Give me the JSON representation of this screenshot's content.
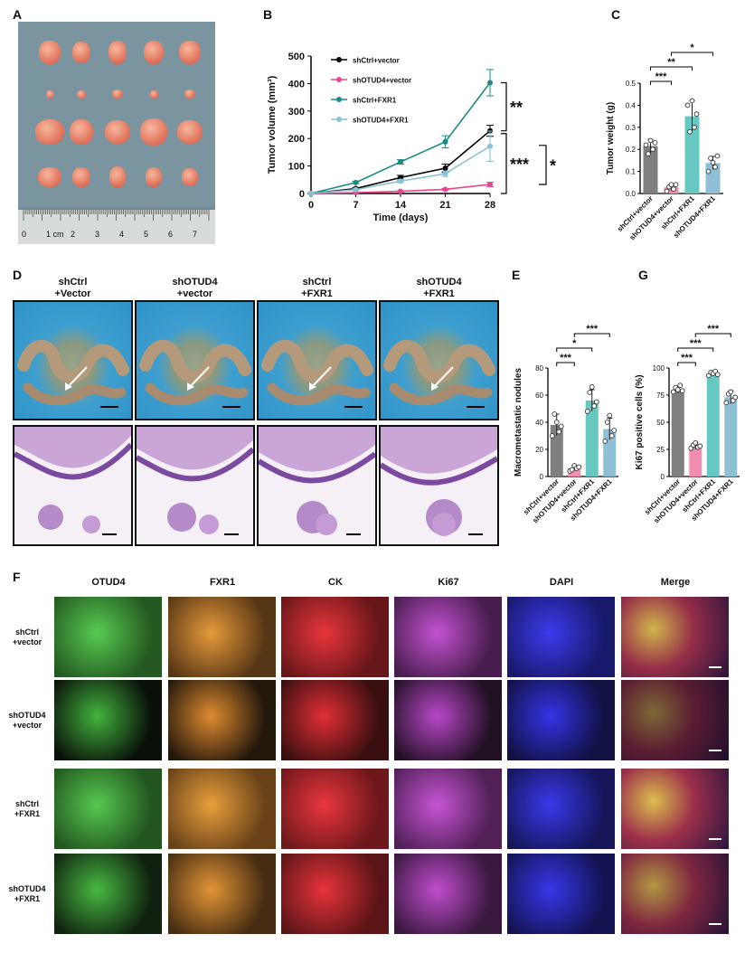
{
  "panels": {
    "A": "A",
    "B": "B",
    "C": "C",
    "D": "D",
    "E": "E",
    "F": "F",
    "G": "G"
  },
  "panelA": {
    "ruler_labels": [
      "0",
      "1 cm",
      "2",
      "3",
      "4",
      "5",
      "6",
      "7"
    ]
  },
  "panelB": {
    "significance": [
      "**",
      "***",
      "*"
    ]
  },
  "panelD": {
    "conditions": [
      [
        "shCtrl",
        "+Vector"
      ],
      [
        "shOTUD4",
        "+vector"
      ],
      [
        "shCtrl",
        "+FXR1"
      ],
      [
        "shOTUD4",
        "+FXR1"
      ]
    ]
  },
  "panelF": {
    "channels": [
      "OTUD4",
      "FXR1",
      "CK",
      "Ki67",
      "DAPI",
      "Merge"
    ],
    "rows": [
      [
        "shCtrl",
        "+vector"
      ],
      [
        "shOTUD4",
        "+vector"
      ],
      [
        "shCtrl",
        "+FXR1"
      ],
      [
        "shOTUD4",
        "+FXR1"
      ]
    ],
    "channel_colors": [
      "#3fb03a",
      "#d9822b",
      "#d8262b",
      "#b03fc0",
      "#2a2ae0",
      "#c96a6a"
    ]
  },
  "chart_data": [
    {
      "panel": "B",
      "type": "line",
      "xlabel": "Time (days)",
      "ylabel": "Tumor volume (mm³)",
      "x": [
        0,
        7,
        14,
        21,
        28
      ],
      "xlim": [
        0,
        28
      ],
      "ylim": [
        0,
        500
      ],
      "yticks": [
        0,
        100,
        200,
        300,
        400,
        500
      ],
      "legend_position": "top-left",
      "series": [
        {
          "name": "shCtrl+vector",
          "color": "#000000",
          "values": [
            0,
            18,
            58,
            92,
            228
          ],
          "errors": [
            0,
            4,
            8,
            15,
            20
          ]
        },
        {
          "name": "shOTUD4+vector",
          "color": "#e8468c",
          "values": [
            0,
            3,
            8,
            15,
            33
          ],
          "errors": [
            0,
            1,
            2,
            3,
            8
          ]
        },
        {
          "name": "shCtrl+FXR1",
          "color": "#1a8a85",
          "values": [
            0,
            40,
            115,
            188,
            403
          ],
          "errors": [
            0,
            4,
            8,
            22,
            48
          ]
        },
        {
          "name": "shOTUD4+FXR1",
          "color": "#8ac2d6",
          "values": [
            0,
            14,
            45,
            72,
            172
          ],
          "errors": [
            0,
            3,
            6,
            10,
            55
          ]
        }
      ]
    },
    {
      "panel": "C",
      "type": "bar",
      "ylabel": "Tumor weight (g)",
      "ylim": [
        0,
        0.5
      ],
      "yticks": [
        "0.0",
        "0.1",
        "0.2",
        "0.3",
        "0.4",
        "0.5"
      ],
      "categories": [
        "shCtrl+vector",
        "shOTUD4+vector",
        "shCtrl+FXR1",
        "shOTUD4+FXR1"
      ],
      "values": [
        0.215,
        0.028,
        0.35,
        0.138
      ],
      "errors": [
        0.03,
        0.015,
        0.07,
        0.03
      ],
      "points": [
        [
          0.22,
          0.18,
          0.24,
          0.2,
          0.23
        ],
        [
          0.01,
          0.03,
          0.04,
          0.02,
          0.04
        ],
        [
          0.4,
          0.28,
          0.42,
          0.3,
          0.36
        ],
        [
          0.1,
          0.16,
          0.14,
          0.12,
          0.17
        ]
      ],
      "colors": [
        "#7f7f7f",
        "#f08db0",
        "#66c8c0",
        "#8ebfd4"
      ],
      "significance": [
        "***",
        "**",
        "*"
      ]
    },
    {
      "panel": "E",
      "type": "bar",
      "ylabel": "Macrometastatic nodules",
      "ylim": [
        0,
        80
      ],
      "yticks": [
        0,
        20,
        40,
        60,
        80
      ],
      "categories": [
        "shCtrl+vector",
        "shOTUD4+vector",
        "shCtrl+FXR1",
        "shOTUD4+FXR1"
      ],
      "values": [
        38,
        6,
        56,
        35
      ],
      "errors": [
        8,
        2,
        8,
        8
      ],
      "points": [
        [
          30,
          46,
          40,
          33,
          37
        ],
        [
          4,
          5,
          8,
          6,
          7
        ],
        [
          48,
          62,
          66,
          52,
          55
        ],
        [
          26,
          40,
          45,
          30,
          34
        ]
      ],
      "colors": [
        "#7f7f7f",
        "#f08db0",
        "#66c8c0",
        "#8ebfd4"
      ],
      "significance": [
        "***",
        "*",
        "***"
      ]
    },
    {
      "panel": "G",
      "type": "bar",
      "ylabel": "Ki67 positive cells (%)",
      "ylim": [
        0,
        100
      ],
      "yticks": [
        0,
        25,
        50,
        75,
        100
      ],
      "categories": [
        "shCtrl+vector",
        "shOTUD4+vector",
        "shCtrl+FXR1",
        "shOTUD4+FXR1"
      ],
      "values": [
        80,
        28,
        95,
        73
      ],
      "errors": [
        3,
        3,
        2,
        6
      ],
      "points": [
        [
          78,
          82,
          80,
          84,
          79
        ],
        [
          26,
          29,
          31,
          27,
          28
        ],
        [
          93,
          96,
          95,
          97,
          94
        ],
        [
          68,
          76,
          78,
          70,
          73
        ]
      ],
      "colors": [
        "#7f7f7f",
        "#f08db0",
        "#66c8c0",
        "#8ebfd4"
      ],
      "significance": [
        "***",
        "***",
        "***"
      ]
    }
  ]
}
